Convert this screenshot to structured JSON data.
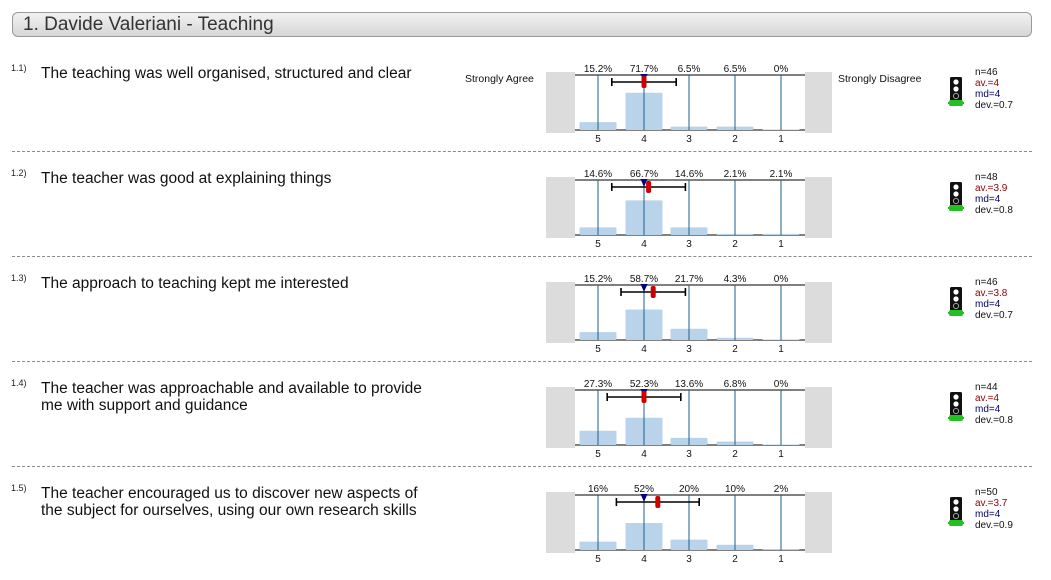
{
  "header": {
    "title": "1. Davide Valeriani - Teaching"
  },
  "scale": {
    "left_anchor": "Strongly Agree",
    "right_anchor": "Strongly Disagree",
    "ticks": [
      "5",
      "4",
      "3",
      "2",
      "1"
    ]
  },
  "questions": [
    {
      "num": "1.1)",
      "text": "The teaching was well organised, structured and clear",
      "show_anchors": true,
      "stats": {
        "n": "n=46",
        "av": "av.=4",
        "md": "md=4",
        "dev": "dev.=0.7"
      }
    },
    {
      "num": "1.2)",
      "text": "The teacher was good at explaining things",
      "show_anchors": false,
      "stats": {
        "n": "n=48",
        "av": "av.=3.9",
        "md": "md=4",
        "dev": "dev.=0.8"
      }
    },
    {
      "num": "1.3)",
      "text": "The approach to teaching kept me interested",
      "show_anchors": false,
      "stats": {
        "n": "n=46",
        "av": "av.=3.8",
        "md": "md=4",
        "dev": "dev.=0.7"
      }
    },
    {
      "num": "1.4)",
      "text": "The teacher was approachable and available to provide me with support and guidance",
      "show_anchors": false,
      "stats": {
        "n": "n=44",
        "av": "av.=4",
        "md": "md=4",
        "dev": "dev.=0.8"
      }
    },
    {
      "num": "1.5)",
      "text": "The teacher encouraged us to discover new aspects of the subject for ourselves, using our own research skills",
      "show_anchors": false,
      "stats": {
        "n": "n=50",
        "av": "av.=3.7",
        "md": "md=4",
        "dev": "dev.=0.9"
      }
    }
  ],
  "colors": {
    "bar": "#b8d3ea",
    "gridline": "#1f5f8b",
    "side_panel": "#dcdcdc",
    "mean_marker": "#cc0000",
    "median_marker": "#000080",
    "traffic_light_body": "#111111",
    "traffic_light_base": "#22c022"
  },
  "icons": {
    "traffic_light": "traffic-light-icon"
  },
  "chart_data": [
    {
      "type": "bar",
      "categories": [
        "5",
        "4",
        "3",
        "2",
        "1"
      ],
      "values": [
        15.2,
        71.7,
        6.5,
        6.5,
        0
      ],
      "labels": [
        "15.2%",
        "71.7%",
        "6.5%",
        "6.5%",
        "0%"
      ],
      "mean": 4.0,
      "median": 4,
      "deviation": 0.7,
      "ylim": [
        0,
        100
      ]
    },
    {
      "type": "bar",
      "categories": [
        "5",
        "4",
        "3",
        "2",
        "1"
      ],
      "values": [
        14.6,
        66.7,
        14.6,
        2.1,
        2.1
      ],
      "labels": [
        "14.6%",
        "66.7%",
        "14.6%",
        "2.1%",
        "2.1%"
      ],
      "mean": 3.9,
      "median": 4,
      "deviation": 0.8,
      "ylim": [
        0,
        100
      ]
    },
    {
      "type": "bar",
      "categories": [
        "5",
        "4",
        "3",
        "2",
        "1"
      ],
      "values": [
        15.2,
        58.7,
        21.7,
        4.3,
        0
      ],
      "labels": [
        "15.2%",
        "58.7%",
        "21.7%",
        "4.3%",
        "0%"
      ],
      "mean": 3.8,
      "median": 4,
      "deviation": 0.7,
      "ylim": [
        0,
        100
      ]
    },
    {
      "type": "bar",
      "categories": [
        "5",
        "4",
        "3",
        "2",
        "1"
      ],
      "values": [
        27.3,
        52.3,
        13.6,
        6.8,
        0
      ],
      "labels": [
        "27.3%",
        "52.3%",
        "13.6%",
        "6.8%",
        "0%"
      ],
      "mean": 4.0,
      "median": 4,
      "deviation": 0.8,
      "ylim": [
        0,
        100
      ]
    },
    {
      "type": "bar",
      "categories": [
        "5",
        "4",
        "3",
        "2",
        "1"
      ],
      "values": [
        16,
        52,
        20,
        10,
        2
      ],
      "labels": [
        "16%",
        "52%",
        "20%",
        "10%",
        "2%"
      ],
      "mean": 3.7,
      "median": 4,
      "deviation": 0.9,
      "ylim": [
        0,
        100
      ]
    }
  ]
}
